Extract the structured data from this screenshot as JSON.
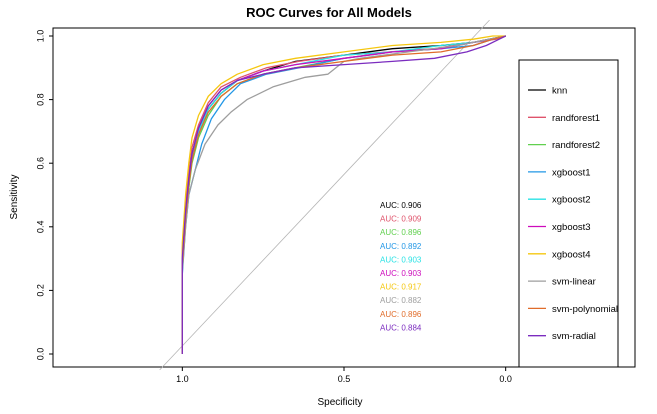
{
  "chart_data": {
    "type": "line",
    "title": "ROC Curves for All Models",
    "xlabel": "Specificity",
    "ylabel": "Sensitivity",
    "xlim": [
      1.4,
      -0.4
    ],
    "ylim": [
      0,
      1
    ],
    "x_axis_reversed": true,
    "x_ticks": [
      {
        "value": 1.0,
        "label": "1.0"
      },
      {
        "value": 0.5,
        "label": "0.5"
      },
      {
        "value": 0.0,
        "label": "0.0"
      }
    ],
    "y_ticks": [
      {
        "value": 0.0,
        "label": "0.0"
      },
      {
        "value": 0.2,
        "label": "0.2"
      },
      {
        "value": 0.4,
        "label": "0.4"
      },
      {
        "value": 0.6,
        "label": "0.6"
      },
      {
        "value": 0.8,
        "label": "0.8"
      },
      {
        "value": 1.0,
        "label": "1.0"
      }
    ],
    "diagonal_reference": true,
    "grid": false,
    "legend_position": "right",
    "series": [
      {
        "name": "knn",
        "color": "#000000",
        "auc_label": "AUC: 0.906",
        "x": [
          1.0,
          1.0,
          0.99,
          0.98,
          0.97,
          0.95,
          0.92,
          0.88,
          0.83,
          0.75,
          0.65,
          0.5,
          0.35,
          0.2,
          0.1,
          0.05,
          0.0
        ],
        "y": [
          0.0,
          0.3,
          0.45,
          0.55,
          0.63,
          0.7,
          0.77,
          0.82,
          0.86,
          0.89,
          0.92,
          0.94,
          0.96,
          0.97,
          0.98,
          0.99,
          1.0
        ]
      },
      {
        "name": "randforest1",
        "color": "#df536b",
        "auc_label": "AUC: 0.909",
        "x": [
          1.0,
          1.0,
          0.99,
          0.98,
          0.97,
          0.95,
          0.92,
          0.88,
          0.82,
          0.74,
          0.64,
          0.5,
          0.36,
          0.22,
          0.1,
          0.03,
          0.0
        ],
        "y": [
          0.0,
          0.33,
          0.47,
          0.57,
          0.65,
          0.72,
          0.79,
          0.84,
          0.87,
          0.9,
          0.92,
          0.94,
          0.95,
          0.96,
          0.98,
          0.99,
          1.0
        ]
      },
      {
        "name": "randforest2",
        "color": "#61d04f",
        "auc_label": "AUC: 0.896",
        "x": [
          1.0,
          1.0,
          0.99,
          0.98,
          0.97,
          0.95,
          0.92,
          0.88,
          0.83,
          0.75,
          0.65,
          0.5,
          0.35,
          0.2,
          0.1,
          0.04,
          0.0
        ],
        "y": [
          0.0,
          0.28,
          0.42,
          0.52,
          0.6,
          0.68,
          0.75,
          0.81,
          0.85,
          0.88,
          0.9,
          0.93,
          0.95,
          0.96,
          0.98,
          0.99,
          1.0
        ]
      },
      {
        "name": "xgboost1",
        "color": "#2297e6",
        "auc_label": "AUC: 0.892",
        "x": [
          1.0,
          1.0,
          0.99,
          0.98,
          0.96,
          0.94,
          0.91,
          0.87,
          0.82,
          0.74,
          0.64,
          0.5,
          0.35,
          0.2,
          0.1,
          0.04,
          0.0
        ],
        "y": [
          0.0,
          0.25,
          0.4,
          0.5,
          0.58,
          0.66,
          0.74,
          0.8,
          0.85,
          0.88,
          0.9,
          0.93,
          0.95,
          0.96,
          0.97,
          0.99,
          1.0
        ]
      },
      {
        "name": "xgboost2",
        "color": "#28e2e5",
        "auc_label": "AUC: 0.903",
        "x": [
          1.0,
          1.0,
          0.99,
          0.98,
          0.97,
          0.95,
          0.92,
          0.88,
          0.83,
          0.75,
          0.65,
          0.5,
          0.35,
          0.2,
          0.1,
          0.04,
          0.0
        ],
        "y": [
          0.0,
          0.3,
          0.44,
          0.54,
          0.62,
          0.7,
          0.77,
          0.82,
          0.86,
          0.89,
          0.91,
          0.94,
          0.95,
          0.97,
          0.98,
          0.99,
          1.0
        ]
      },
      {
        "name": "xgboost3",
        "color": "#cd0bbc",
        "auc_label": "AUC: 0.903",
        "x": [
          1.0,
          1.0,
          0.99,
          0.98,
          0.97,
          0.95,
          0.92,
          0.88,
          0.83,
          0.75,
          0.65,
          0.5,
          0.35,
          0.2,
          0.1,
          0.04,
          0.0
        ],
        "y": [
          0.0,
          0.31,
          0.45,
          0.55,
          0.63,
          0.71,
          0.78,
          0.83,
          0.86,
          0.89,
          0.91,
          0.93,
          0.95,
          0.96,
          0.98,
          0.99,
          1.0
        ]
      },
      {
        "name": "xgboost4",
        "color": "#f5c710",
        "auc_label": "AUC: 0.917",
        "x": [
          1.0,
          1.0,
          0.99,
          0.98,
          0.97,
          0.95,
          0.92,
          0.88,
          0.83,
          0.75,
          0.65,
          0.5,
          0.35,
          0.2,
          0.1,
          0.04,
          0.0
        ],
        "y": [
          0.0,
          0.35,
          0.5,
          0.6,
          0.68,
          0.75,
          0.81,
          0.85,
          0.88,
          0.91,
          0.93,
          0.95,
          0.97,
          0.98,
          0.99,
          1.0,
          1.0
        ]
      },
      {
        "name": "svm-linear",
        "color": "#9e9e9e",
        "auc_label": "AUC: 0.882",
        "x": [
          1.0,
          1.0,
          0.99,
          0.98,
          0.96,
          0.93,
          0.89,
          0.85,
          0.8,
          0.72,
          0.62,
          0.55,
          0.5,
          0.45,
          0.3,
          0.15,
          0.05,
          0.0
        ],
        "y": [
          0.0,
          0.26,
          0.4,
          0.5,
          0.58,
          0.66,
          0.72,
          0.76,
          0.8,
          0.84,
          0.87,
          0.88,
          0.92,
          0.93,
          0.95,
          0.97,
          0.99,
          1.0
        ]
      },
      {
        "name": "svm-polynomial",
        "color": "#e06c2a",
        "auc_label": "AUC: 0.896",
        "x": [
          1.0,
          1.0,
          0.99,
          0.98,
          0.97,
          0.95,
          0.92,
          0.88,
          0.83,
          0.75,
          0.65,
          0.5,
          0.35,
          0.2,
          0.1,
          0.04,
          0.0
        ],
        "y": [
          0.0,
          0.28,
          0.43,
          0.53,
          0.61,
          0.69,
          0.76,
          0.81,
          0.85,
          0.88,
          0.9,
          0.92,
          0.94,
          0.95,
          0.97,
          0.99,
          1.0
        ]
      },
      {
        "name": "svm-radial",
        "color": "#7b2cbf",
        "auc_label": "AUC: 0.884",
        "x": [
          1.0,
          1.0,
          0.99,
          0.98,
          0.97,
          0.95,
          0.92,
          0.88,
          0.83,
          0.75,
          0.65,
          0.5,
          0.35,
          0.22,
          0.12,
          0.06,
          0.02,
          0.0
        ],
        "y": [
          0.0,
          0.3,
          0.45,
          0.55,
          0.63,
          0.71,
          0.78,
          0.83,
          0.86,
          0.88,
          0.9,
          0.91,
          0.92,
          0.93,
          0.95,
          0.97,
          0.99,
          1.0
        ]
      }
    ]
  }
}
